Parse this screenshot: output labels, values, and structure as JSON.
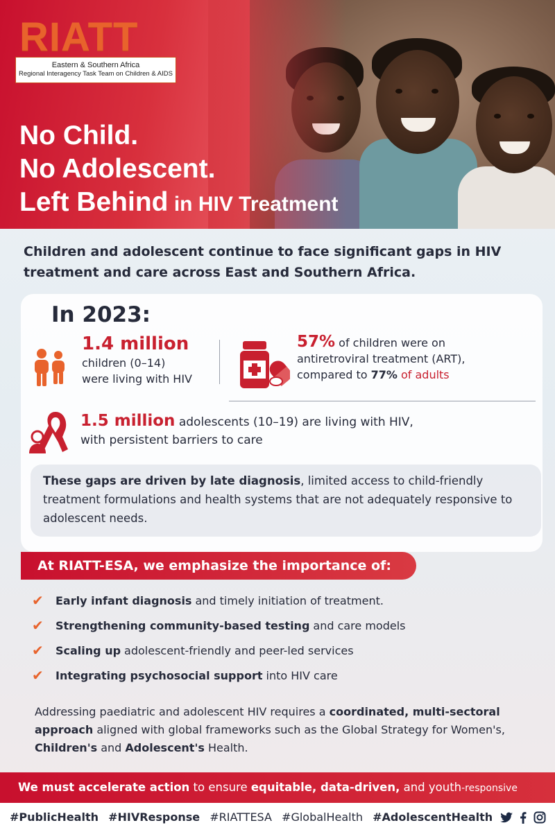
{
  "logo": {
    "word": "RIATT",
    "line1": "Eastern & Southern Africa",
    "line2": "Regional Interagency Task Team on Children & AIDS"
  },
  "title": {
    "line1": "No Child.",
    "line2": "No Adolescent.",
    "line3_bold": "Left Behind",
    "line3_rest": " in HIV Treatment"
  },
  "intro": "Children and adolescent continue to face significant gaps in HIV treatment and care across East and Southern Africa.",
  "year_heading": "In 2023:",
  "stat_children": {
    "value": "1.4 million",
    "line1": "children (0–14)",
    "line2": "were living with HIV"
  },
  "stat_art": {
    "value": "57%",
    "text1": " of children were on",
    "text2": "antiretroviral treatment (ART),",
    "text3": "compared to ",
    "adult_value": "77%",
    "text4": " of adults"
  },
  "stat_adolescents": {
    "value": "1.5 million",
    "text1": " adolescents (10–19) are living with HIV,",
    "text2": "with persistent barriers to care"
  },
  "gaps": {
    "bold": "These gaps are driven by late diagnosis",
    "rest": ", limited access to child-friendly treatment formulations and health systems that are not adequately responsive to adolescent needs."
  },
  "emphasis_heading": "At RIATT-ESA, we emphasize the importance of:",
  "emphasis_items": [
    {
      "bold": "Early infant diagnosis",
      "rest": "and timely initiation of treatment."
    },
    {
      "bold": "Strengthening community-based testing",
      "rest": "and care models"
    },
    {
      "bold": "Scaling up",
      "rest": "adolescent-friendly and peer-led services"
    },
    {
      "bold": "Integrating psychosocial support",
      "rest": "into HIV care"
    }
  ],
  "closing": {
    "p1": "Addressing paediatric and adolescent HIV requires a ",
    "b1": "coordinated, multi-sectoral approach",
    "p2": " aligned with global frameworks such as the Global Strategy for Women's, ",
    "b2": "Children's",
    "p3": " and ",
    "b3": "Adolescent's",
    "p4": " Health."
  },
  "band": {
    "b1": "We must accelerate action",
    "p1": " to ensure ",
    "b2": "equitable, data-driven,",
    "p2": " and youth",
    "p3": "-responsive"
  },
  "hashtags": [
    "#PublicHealth",
    "#HIVResponse",
    "#RIATTESA",
    "#GlobalHealth",
    "#AdolescentHealth"
  ],
  "icons": {
    "children": "children-icon",
    "medicine": "medicine-bottle-icon",
    "ribbon": "ribbon-icon",
    "check": "check-icon",
    "twitter": "twitter-icon",
    "facebook": "facebook-icon",
    "instagram": "instagram-icon"
  },
  "colors": {
    "brand_red": "#c8102e",
    "orange": "#e8632c",
    "text_dark": "#262a3a"
  }
}
